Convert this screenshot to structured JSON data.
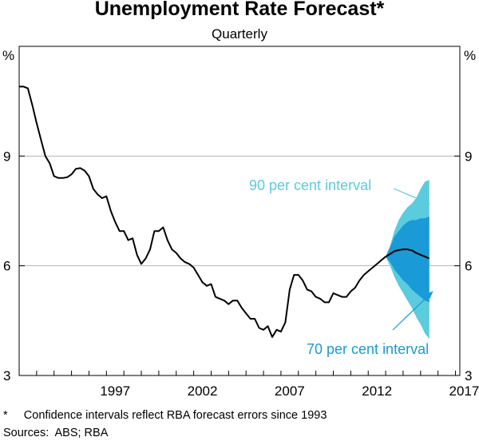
{
  "chart_data": {
    "type": "line",
    "title": "Unemployment Rate Forecast*",
    "subtitle": "Quarterly",
    "ylabel_left": "%",
    "ylabel_right": "%",
    "ylim": [
      3,
      12
    ],
    "yticks": [
      3,
      6,
      9
    ],
    "xlim": [
      1992.0,
      2017.25
    ],
    "xticks": [
      1997,
      2002,
      2007,
      2012,
      2017
    ],
    "grid": "horizontal",
    "series": [
      {
        "values": [
          [
            1992.0,
            10.9
          ],
          [
            1992.25,
            10.9
          ],
          [
            1992.5,
            10.85
          ],
          [
            1992.75,
            10.4
          ],
          [
            1993.0,
            9.9
          ],
          [
            1993.25,
            9.45
          ],
          [
            1993.5,
            9.0
          ],
          [
            1993.75,
            8.8
          ],
          [
            1994.0,
            8.45
          ],
          [
            1994.25,
            8.4
          ],
          [
            1994.5,
            8.4
          ],
          [
            1994.75,
            8.42
          ],
          [
            1995.0,
            8.5
          ],
          [
            1995.25,
            8.65
          ],
          [
            1995.5,
            8.67
          ],
          [
            1995.75,
            8.6
          ],
          [
            1996.0,
            8.45
          ],
          [
            1996.25,
            8.1
          ],
          [
            1996.5,
            7.95
          ],
          [
            1996.75,
            7.85
          ],
          [
            1997.0,
            7.9
          ],
          [
            1997.25,
            7.5
          ],
          [
            1997.5,
            7.2
          ],
          [
            1997.75,
            6.95
          ],
          [
            1998.0,
            6.95
          ],
          [
            1998.25,
            6.7
          ],
          [
            1998.5,
            6.75
          ],
          [
            1998.75,
            6.3
          ],
          [
            1999.0,
            6.05
          ],
          [
            1999.25,
            6.2
          ],
          [
            1999.5,
            6.45
          ],
          [
            1999.75,
            6.95
          ],
          [
            2000.0,
            6.95
          ],
          [
            2000.25,
            7.05
          ],
          [
            2000.5,
            6.7
          ],
          [
            2000.75,
            6.45
          ],
          [
            2001.0,
            6.35
          ],
          [
            2001.25,
            6.2
          ],
          [
            2001.5,
            6.1
          ],
          [
            2001.75,
            6.05
          ],
          [
            2002.0,
            5.95
          ],
          [
            2002.25,
            5.75
          ],
          [
            2002.5,
            5.55
          ],
          [
            2002.75,
            5.45
          ],
          [
            2003.0,
            5.5
          ],
          [
            2003.25,
            5.15
          ],
          [
            2003.5,
            5.1
          ],
          [
            2003.75,
            5.05
          ],
          [
            2004.0,
            4.95
          ],
          [
            2004.25,
            5.05
          ],
          [
            2004.5,
            5.05
          ],
          [
            2004.75,
            4.85
          ],
          [
            2005.0,
            4.7
          ],
          [
            2005.25,
            4.55
          ],
          [
            2005.5,
            4.55
          ],
          [
            2005.75,
            4.3
          ],
          [
            2006.0,
            4.25
          ],
          [
            2006.25,
            4.35
          ],
          [
            2006.5,
            4.05
          ],
          [
            2006.75,
            4.25
          ],
          [
            2007.0,
            4.2
          ],
          [
            2007.25,
            4.45
          ],
          [
            2007.5,
            5.35
          ],
          [
            2007.75,
            5.75
          ],
          [
            2008.0,
            5.75
          ],
          [
            2008.25,
            5.6
          ],
          [
            2008.5,
            5.35
          ],
          [
            2008.75,
            5.3
          ],
          [
            2009.0,
            5.15
          ],
          [
            2009.25,
            5.1
          ],
          [
            2009.5,
            5.0
          ],
          [
            2009.75,
            5.0
          ],
          [
            2010.0,
            5.25
          ],
          [
            2010.25,
            5.2
          ],
          [
            2010.5,
            5.15
          ],
          [
            2010.75,
            5.15
          ],
          [
            2011.0,
            5.3
          ],
          [
            2011.25,
            5.4
          ],
          [
            2011.5,
            5.6
          ],
          [
            2011.75,
            5.75
          ],
          [
            2012.0,
            5.85
          ],
          [
            2012.25,
            5.95
          ],
          [
            2012.5,
            6.05
          ],
          [
            2012.75,
            6.15
          ],
          [
            2013.0,
            6.25
          ]
        ]
      },
      {
        "values": [
          [
            2013.0,
            6.25
          ],
          [
            2013.25,
            6.32
          ],
          [
            2013.5,
            6.4
          ],
          [
            2013.75,
            6.43
          ],
          [
            2014.0,
            6.45
          ],
          [
            2014.25,
            6.45
          ],
          [
            2014.5,
            6.42
          ],
          [
            2014.75,
            6.35
          ],
          [
            2015.0,
            6.3
          ],
          [
            2015.25,
            6.25
          ],
          [
            2015.5,
            6.2
          ]
        ]
      }
    ],
    "bands": [
      {
        "label": "90 per cent interval",
        "color": "#5bcbde",
        "x": [
          2013.0,
          2013.25,
          2013.5,
          2013.75,
          2014.0,
          2014.25,
          2014.5,
          2014.75,
          2015.0,
          2015.25,
          2015.5
        ],
        "lower": [
          6.25,
          6.0,
          5.7,
          5.45,
          5.25,
          5.05,
          4.85,
          4.6,
          4.4,
          4.15,
          4.0
        ],
        "upper": [
          6.25,
          6.55,
          6.95,
          7.25,
          7.45,
          7.6,
          7.7,
          7.85,
          8.1,
          8.3,
          8.35
        ]
      },
      {
        "label": "70 per cent interval",
        "color": "#1a9ad6",
        "x": [
          2013.0,
          2013.25,
          2013.5,
          2013.75,
          2014.0,
          2014.25,
          2014.5,
          2014.75,
          2015.0,
          2015.25,
          2015.5
        ],
        "lower": [
          6.25,
          6.1,
          5.9,
          5.75,
          5.6,
          5.5,
          5.35,
          5.25,
          5.15,
          5.05,
          5.0
        ],
        "upper": [
          6.25,
          6.5,
          6.8,
          6.95,
          7.1,
          7.2,
          7.25,
          7.25,
          7.3,
          7.3,
          7.35
        ]
      }
    ],
    "annotations": [
      {
        "text": "90 per cent interval",
        "color": "#5bcbde"
      },
      {
        "text": "70 per cent interval",
        "color": "#1a9ad6"
      }
    ]
  },
  "footnotes": {
    "note": "*     Confidence intervals reflect RBA forecast errors since 1993",
    "sources": "Sources:  ABS; RBA"
  }
}
